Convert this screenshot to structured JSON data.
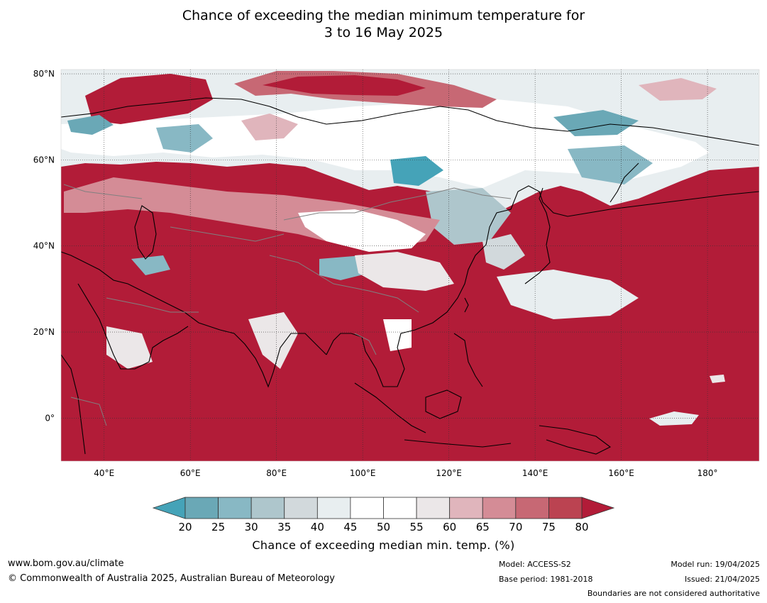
{
  "title_line1": "Chance of exceeding the median minimum temperature for",
  "title_line2": "3 to 16 May 2025",
  "map": {
    "region": "Asia",
    "lon_range": [
      30,
      192
    ],
    "lat_range": [
      -10,
      81
    ],
    "lat_ticks": [
      {
        "lat": 80,
        "label": "80°N"
      },
      {
        "lat": 60,
        "label": "60°N"
      },
      {
        "lat": 40,
        "label": "40°N"
      },
      {
        "lat": 20,
        "label": "20°N"
      },
      {
        "lat": 0,
        "label": "0°"
      }
    ],
    "lon_ticks": [
      {
        "lon": 40,
        "label": "40°E"
      },
      {
        "lon": 60,
        "label": "60°E"
      },
      {
        "lon": 80,
        "label": "80°E"
      },
      {
        "lon": 100,
        "label": "100°E"
      },
      {
        "lon": 120,
        "label": "120°E"
      },
      {
        "lon": 140,
        "label": "140°E"
      },
      {
        "lon": 160,
        "label": "160°E"
      },
      {
        "lon": 180,
        "label": "180°"
      }
    ],
    "gridlines": "dotted",
    "background_color": "#b21c38"
  },
  "colorbar": {
    "label": "Chance of exceeding median min. temp. (%)",
    "ticks": [
      "20",
      "25",
      "30",
      "35",
      "40",
      "45",
      "50",
      "55",
      "60",
      "65",
      "70",
      "75",
      "80"
    ],
    "under_color": "#45a3b8",
    "over_color": "#b21c38",
    "colors": [
      "#6aa8b6",
      "#88b8c4",
      "#aec6cc",
      "#d2d9dc",
      "#e8eef0",
      "#ffffff",
      "#ffffff",
      "#ebe7e8",
      "#e0b5bc",
      "#d48c96",
      "#c76874",
      "#bb4351"
    ]
  },
  "footer": {
    "url": "www.bom.gov.au/climate",
    "copyright": "© Commonwealth of Australia 2025, Australian Bureau of Meteorology",
    "model": "Model: ACCESS-S2",
    "base_period": "Base period: 1981-2018",
    "model_run": "Model run: 19/04/2025",
    "issued": "Issued: 21/04/2025",
    "disclaimer": "Boundaries are not considered authoritative"
  }
}
